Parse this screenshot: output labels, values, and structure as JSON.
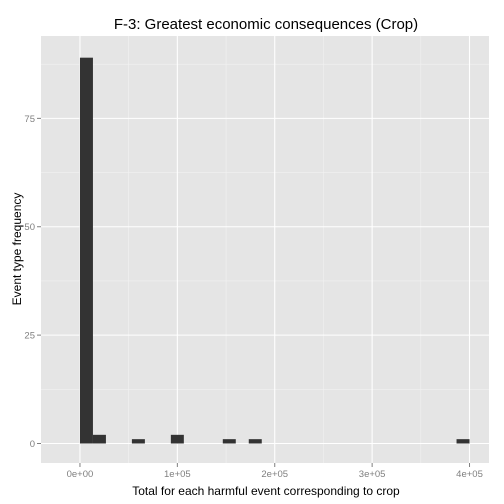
{
  "chart_data": {
    "type": "bar",
    "title": "F-3: Greatest economic consequences (Crop)",
    "xlabel": "Total for each harmful event corresponding to crop",
    "ylabel": "Event type frequency",
    "xlim": [
      -40000,
      420000
    ],
    "ylim": [
      -4.5,
      94
    ],
    "x_ticks": [
      {
        "value": 0,
        "label": "0e+00"
      },
      {
        "value": 100000,
        "label": "1e+05"
      },
      {
        "value": 200000,
        "label": "2e+05"
      },
      {
        "value": 300000,
        "label": "3e+05"
      },
      {
        "value": 400000,
        "label": "4e+05"
      }
    ],
    "y_ticks": [
      {
        "value": 0,
        "label": "0"
      },
      {
        "value": 25,
        "label": "25"
      },
      {
        "value": 50,
        "label": "50"
      },
      {
        "value": 75,
        "label": "75"
      }
    ],
    "bin_width": 13333,
    "bins": [
      {
        "start": 0,
        "count": 89
      },
      {
        "start": 13333,
        "count": 2
      },
      {
        "start": 53333,
        "count": 1
      },
      {
        "start": 93333,
        "count": 2
      },
      {
        "start": 146667,
        "count": 1
      },
      {
        "start": 173333,
        "count": 1
      },
      {
        "start": 386667,
        "count": 1
      }
    ],
    "grid": true,
    "colors": {
      "panel_background": "#e5e5e5",
      "grid_major": "#ffffff",
      "grid_minor": "#f2f2f2",
      "bar_fill": "#333333",
      "tick_text": "#7f7f7f"
    }
  }
}
